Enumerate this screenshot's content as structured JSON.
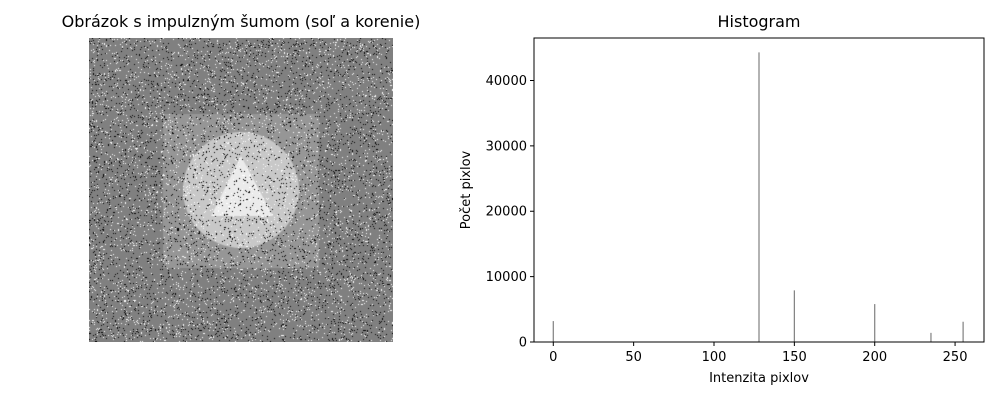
{
  "image_panel": {
    "title": "Obrázok s impulzným šumom (soľ a korenie)",
    "background_gray": "#808080",
    "square_gray": "#969696",
    "circle_gray": "#c8c8c8",
    "triangle_gray": "#ebebeb",
    "noise": "salt-and-pepper"
  },
  "chart_data": {
    "type": "bar",
    "title": "Histogram",
    "xlabel": "Intenzita pixlov",
    "ylabel": "Počet pixlov",
    "xlim": [
      -12,
      268
    ],
    "ylim": [
      0,
      46500
    ],
    "xticks": [
      0,
      50,
      100,
      150,
      200,
      250
    ],
    "yticks": [
      0,
      10000,
      20000,
      30000,
      40000
    ],
    "bar_color": "#808080",
    "bars": [
      {
        "x": 0,
        "y": 3200
      },
      {
        "x": 128,
        "y": 44300
      },
      {
        "x": 150,
        "y": 7900
      },
      {
        "x": 200,
        "y": 5800
      },
      {
        "x": 235,
        "y": 1400
      },
      {
        "x": 255,
        "y": 3100
      }
    ]
  }
}
